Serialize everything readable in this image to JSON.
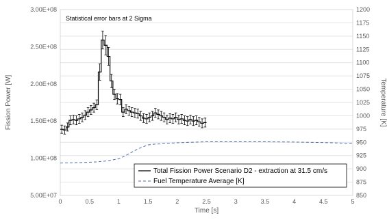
{
  "chart_data": {
    "type": "line",
    "annotation": "Statistical error bars at 2 Sigma",
    "xlabel": "Time [s]",
    "ylabel_left": "Fission Power [W]",
    "ylabel_right": "Temperature [K]",
    "x_ticks": [
      "0",
      "0.5",
      "1",
      "1.5",
      "2",
      "2.5",
      "3",
      "3.5",
      "4",
      "4.5",
      "5"
    ],
    "x_tick_values": [
      0,
      0.5,
      1,
      1.5,
      2,
      2.5,
      3,
      3.5,
      4,
      4.5,
      5
    ],
    "xlim": [
      0,
      5
    ],
    "y_left_ticks": [
      "5.00E+07",
      "1.00E+08",
      "1.50E+08",
      "2.00E+08",
      "2.50E+08",
      "3.00E+08"
    ],
    "y_left_tick_values": [
      50000000,
      100000000,
      150000000,
      200000000,
      250000000,
      300000000
    ],
    "ylim_left": [
      50000000,
      300000000
    ],
    "y_right_ticks": [
      "850",
      "875",
      "900",
      "925",
      "950",
      "975",
      "1000",
      "1025",
      "1050",
      "1075",
      "1100",
      "1125",
      "1150",
      "1175",
      "1200"
    ],
    "y_right_tick_values": [
      850,
      875,
      900,
      925,
      950,
      975,
      1000,
      1025,
      1050,
      1075,
      1100,
      1125,
      1150,
      1175,
      1200
    ],
    "ylim_right": [
      850,
      1200
    ],
    "grid": "horizontal",
    "legend_position": "bottom-right",
    "series": [
      {
        "name": "Total Fission Power Scenario D2 - extraction at 31.5 cm/s",
        "axis": "left",
        "style": "step with error bars",
        "color": "#000000",
        "bin_width": 0.05,
        "values": [
          139000000,
          138000000,
          142000000,
          151000000,
          152000000,
          151000000,
          153000000,
          155000000,
          158000000,
          162000000,
          165000000,
          168000000,
          172000000,
          216000000,
          259000000,
          252000000,
          237000000,
          204000000,
          186000000,
          180000000,
          179000000,
          162000000,
          166000000,
          164000000,
          162000000,
          161000000,
          160000000,
          157000000,
          154000000,
          153000000,
          155000000,
          157000000,
          161000000,
          159000000,
          157000000,
          155000000,
          152000000,
          154000000,
          153000000,
          155000000,
          152000000,
          153000000,
          151000000,
          150000000,
          152000000,
          150000000,
          151000000,
          149000000,
          147000000,
          148000000
        ],
        "errors": [
          5500000,
          5500000,
          5500000,
          6000000,
          6000000,
          6000000,
          6000000,
          6000000,
          6000000,
          6000000,
          6000000,
          6000000,
          6500000,
          11000000,
          12000000,
          13000000,
          12000000,
          9000000,
          7000000,
          7000000,
          7000000,
          6000000,
          6000000,
          6000000,
          6000000,
          6000000,
          6000000,
          6000000,
          6000000,
          6000000,
          6000000,
          6000000,
          6000000,
          6000000,
          6000000,
          6000000,
          6000000,
          6000000,
          6000000,
          6000000,
          6000000,
          6000000,
          6000000,
          6000000,
          6000000,
          6000000,
          6000000,
          6000000,
          6000000,
          6000000
        ]
      },
      {
        "name": "Fuel Temperature Average [K]",
        "axis": "right",
        "style": "dashed",
        "color": "#4a6ea8",
        "x": [
          0,
          0.2,
          0.4,
          0.6,
          0.8,
          1.0,
          1.1,
          1.2,
          1.3,
          1.4,
          1.5,
          1.6,
          1.7,
          1.8,
          2.0,
          2.2,
          2.5,
          3.0,
          3.5,
          4.0,
          4.5,
          5.0
        ],
        "values": [
          911,
          911.5,
          912,
          913,
          915,
          919,
          924,
          930,
          936,
          941,
          945,
          946.5,
          947,
          948,
          949,
          950,
          951,
          951,
          951,
          950.5,
          949.5,
          948
        ]
      }
    ]
  }
}
